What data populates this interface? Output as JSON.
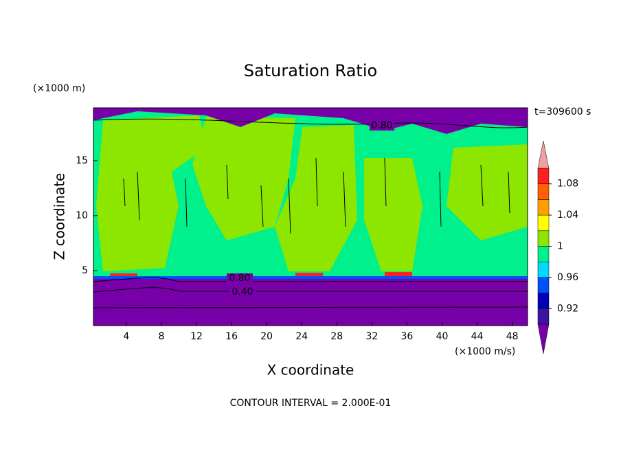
{
  "chart_data": {
    "type": "contour",
    "title": "Saturation Ratio",
    "x_label": "X coordinate",
    "y_label": "Z coordinate",
    "x_units": "(×1000 m/s)",
    "y_units": "(×1000 m)",
    "time_label": "t=309600 s",
    "footer": "CONTOUR INTERVAL = 2.000E-01",
    "xlim": [
      0.25,
      49.75
    ],
    "xticks": [
      4,
      8,
      12,
      16,
      20,
      24,
      28,
      32,
      36,
      40,
      44,
      48
    ],
    "ylim": [
      0,
      19.8
    ],
    "yticks": [
      5,
      10,
      15
    ],
    "contour_labels": [
      {
        "value": 0.8,
        "label": "0.80"
      },
      {
        "value": 0.8,
        "label": "0.80"
      },
      {
        "value": 0.4,
        "label": "0.40"
      }
    ],
    "colorbar": {
      "levels": [
        0.9,
        0.92,
        0.94,
        0.96,
        0.98,
        1,
        1.02,
        1.04,
        1.06,
        1.08,
        1.1
      ],
      "colors": [
        "#3c14a0",
        "#0000b4",
        "#0050ff",
        "#00d8ff",
        "#00f08c",
        "#8ce600",
        "#ffff00",
        "#ffa000",
        "#ff6000",
        "#ff2020"
      ],
      "under_color": "#7800a8",
      "over_color": "#f0a0a0",
      "ticks": [
        0.92,
        0.96,
        1,
        1.04,
        1.08
      ]
    }
  }
}
